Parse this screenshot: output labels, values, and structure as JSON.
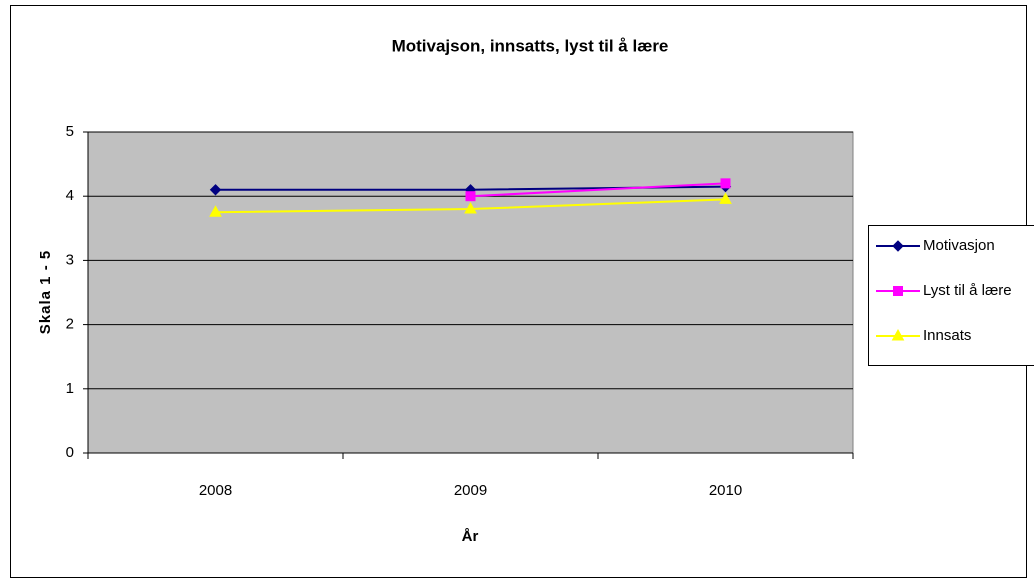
{
  "chart_data": {
    "type": "line",
    "title": "Motivajson, innsatts, lyst til å lære",
    "x_label": "År",
    "y_label": "Skala 1 - 5",
    "categories": [
      "2008",
      "2009",
      "2010"
    ],
    "series": [
      {
        "name": "Motivasjon",
        "color": "#000080",
        "marker": "diamond",
        "values": [
          4.1,
          4.1,
          4.15
        ]
      },
      {
        "name": "Lyst til å lære",
        "color": "#ff00ff",
        "marker": "square",
        "values": [
          null,
          4.0,
          4.2
        ]
      },
      {
        "name": "Innsats",
        "color": "#ffff00",
        "marker": "triangle",
        "values": [
          3.75,
          3.8,
          3.95
        ]
      }
    ],
    "ylim": [
      0,
      5
    ],
    "yticks": [
      0,
      1,
      2,
      3,
      4,
      5
    ],
    "grid": true,
    "legend": "right"
  }
}
